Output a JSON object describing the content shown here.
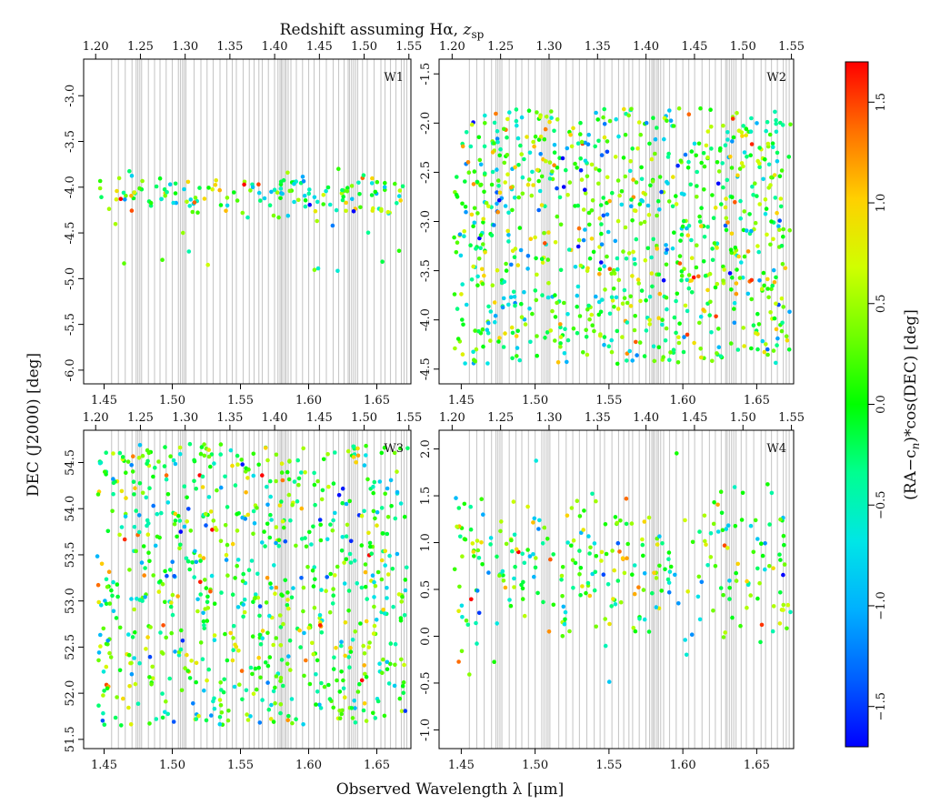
{
  "figure": {
    "top_label": "Redshift assuming Hα, ",
    "top_label_var": "z",
    "top_label_sub": "sp",
    "bottom_label": "Observed Wavelength λ [μm]",
    "left_label": "DEC (J2000) [deg]",
    "colorbar_label": "(RA−c",
    "colorbar_label_sub": "n",
    "colorbar_label_tail": ")*cos(DEC) [deg]"
  },
  "chart_data": [
    {
      "type": "scatter",
      "panel": "W1",
      "xlabel": "Observed Wavelength λ [μm]",
      "ylabel": "DEC (J2000) [deg]",
      "xlim": [
        1.435,
        1.675
      ],
      "ylim": [
        -6.15,
        -2.6
      ],
      "xticks": [
        "1.45",
        "1.50",
        "1.55",
        "1.60",
        "1.65"
      ],
      "yticks": [
        "-3.0",
        "-3.5",
        "-4.0",
        "-4.5",
        "-5.0",
        "-5.5",
        "-6.0"
      ],
      "zticks": [
        "1.20",
        "1.25",
        "1.30",
        "1.35",
        "1.40",
        "1.45",
        "1.50",
        "1.55"
      ],
      "color_scale": "RA offset [deg], -1.7 (blue) to 1.7 (red)",
      "n_points": 170,
      "clusters": [
        [
          -4.05,
          0.1,
          0.7
        ],
        [
          -4.25,
          0.12,
          0.22
        ],
        [
          -4.85,
          0.18,
          0.08
        ]
      ]
    },
    {
      "type": "scatter",
      "panel": "W2",
      "xlabel": "Observed Wavelength λ [μm]",
      "ylabel": "DEC (J2000) [deg]",
      "xlim": [
        1.435,
        1.675
      ],
      "ylim": [
        -4.65,
        -1.35
      ],
      "xticks": [
        "1.45",
        "1.50",
        "1.55",
        "1.60",
        "1.65"
      ],
      "yticks": [
        "-1.5",
        "-2.0",
        "-2.5",
        "-3.0",
        "-3.5",
        "-4.0",
        "-4.5"
      ],
      "zticks": [
        "1.20",
        "1.25",
        "1.30",
        "1.35",
        "1.40",
        "1.45",
        "1.50",
        "1.55"
      ],
      "color_scale": "RA offset [deg], -1.7 (blue) to 1.7 (red)",
      "n_points": 900,
      "range": [
        -4.45,
        -1.85
      ]
    },
    {
      "type": "scatter",
      "panel": "W3",
      "xlabel": "Observed Wavelength λ [μm]",
      "ylabel": "DEC (J2000) [deg]",
      "xlim": [
        1.435,
        1.675
      ],
      "ylim": [
        51.4,
        54.85
      ],
      "xticks": [
        "1.45",
        "1.50",
        "1.55",
        "1.60",
        "1.65"
      ],
      "yticks": [
        "51.5",
        "52.0",
        "52.5",
        "53.0",
        "53.5",
        "54.0",
        "54.5"
      ],
      "zticks": [
        "1.20",
        "1.25",
        "1.30",
        "1.35",
        "1.40",
        "1.45",
        "1.50",
        "1.55"
      ],
      "color_scale": "RA offset [deg], -1.7 (blue) to 1.7 (red)",
      "n_points": 780,
      "range": [
        51.65,
        54.7
      ]
    },
    {
      "type": "scatter",
      "panel": "W4",
      "xlabel": "Observed Wavelength λ [μm]",
      "ylabel": "DEC (J2000) [deg]",
      "xlim": [
        1.435,
        1.675
      ],
      "ylim": [
        -1.2,
        2.2
      ],
      "xticks": [
        "1.45",
        "1.50",
        "1.55",
        "1.60",
        "1.65"
      ],
      "yticks": [
        "2.0",
        "1.5",
        "1.0",
        "0.5",
        "0.0",
        "-0.5",
        "-1.0"
      ],
      "zticks": [
        "1.20",
        "1.25",
        "1.30",
        "1.35",
        "1.40",
        "1.45",
        "1.50",
        "1.55"
      ],
      "color_scale": "RA offset [deg], -1.7 (blue) to 1.7 (red)",
      "n_points": 300,
      "clusters": [
        [
          0.95,
          0.28,
          0.6
        ],
        [
          0.35,
          0.3,
          0.4
        ]
      ]
    }
  ],
  "colorbar": {
    "range": [
      -1.7,
      1.7
    ],
    "ticks": [
      "1.5",
      "1.0",
      "0.5",
      "0.0",
      "−0.5",
      "−1.0",
      "−1.5"
    ],
    "colors": [
      "#0000ff",
      "#0060ff",
      "#00b0ff",
      "#00e6e6",
      "#00ff90",
      "#00ff00",
      "#70ff00",
      "#d0ff00",
      "#ffd000",
      "#ff7000",
      "#ff0000"
    ]
  },
  "sky_lines_um": [
    1.4555,
    1.4605,
    1.4655,
    1.4705,
    1.4735,
    1.4748,
    1.4762,
    1.4775,
    1.4825,
    1.487,
    1.491,
    1.4955,
    1.5,
    1.5045,
    1.506,
    1.5075,
    1.5088,
    1.51,
    1.516,
    1.521,
    1.5255,
    1.53,
    1.535,
    1.54,
    1.544,
    1.547,
    1.552,
    1.5565,
    1.56,
    1.5635,
    1.566,
    1.5705,
    1.575,
    1.5775,
    1.579,
    1.58,
    1.581,
    1.5825,
    1.5835,
    1.585,
    1.587,
    1.591,
    1.5955,
    1.6,
    1.604,
    1.608,
    1.613,
    1.618,
    1.622,
    1.626,
    1.629,
    1.63,
    1.6315,
    1.633,
    1.6345,
    1.636,
    1.6395,
    1.643,
    1.648,
    1.653,
    1.656,
    1.66,
    1.664,
    1.668,
    1.67,
    1.672
  ]
}
